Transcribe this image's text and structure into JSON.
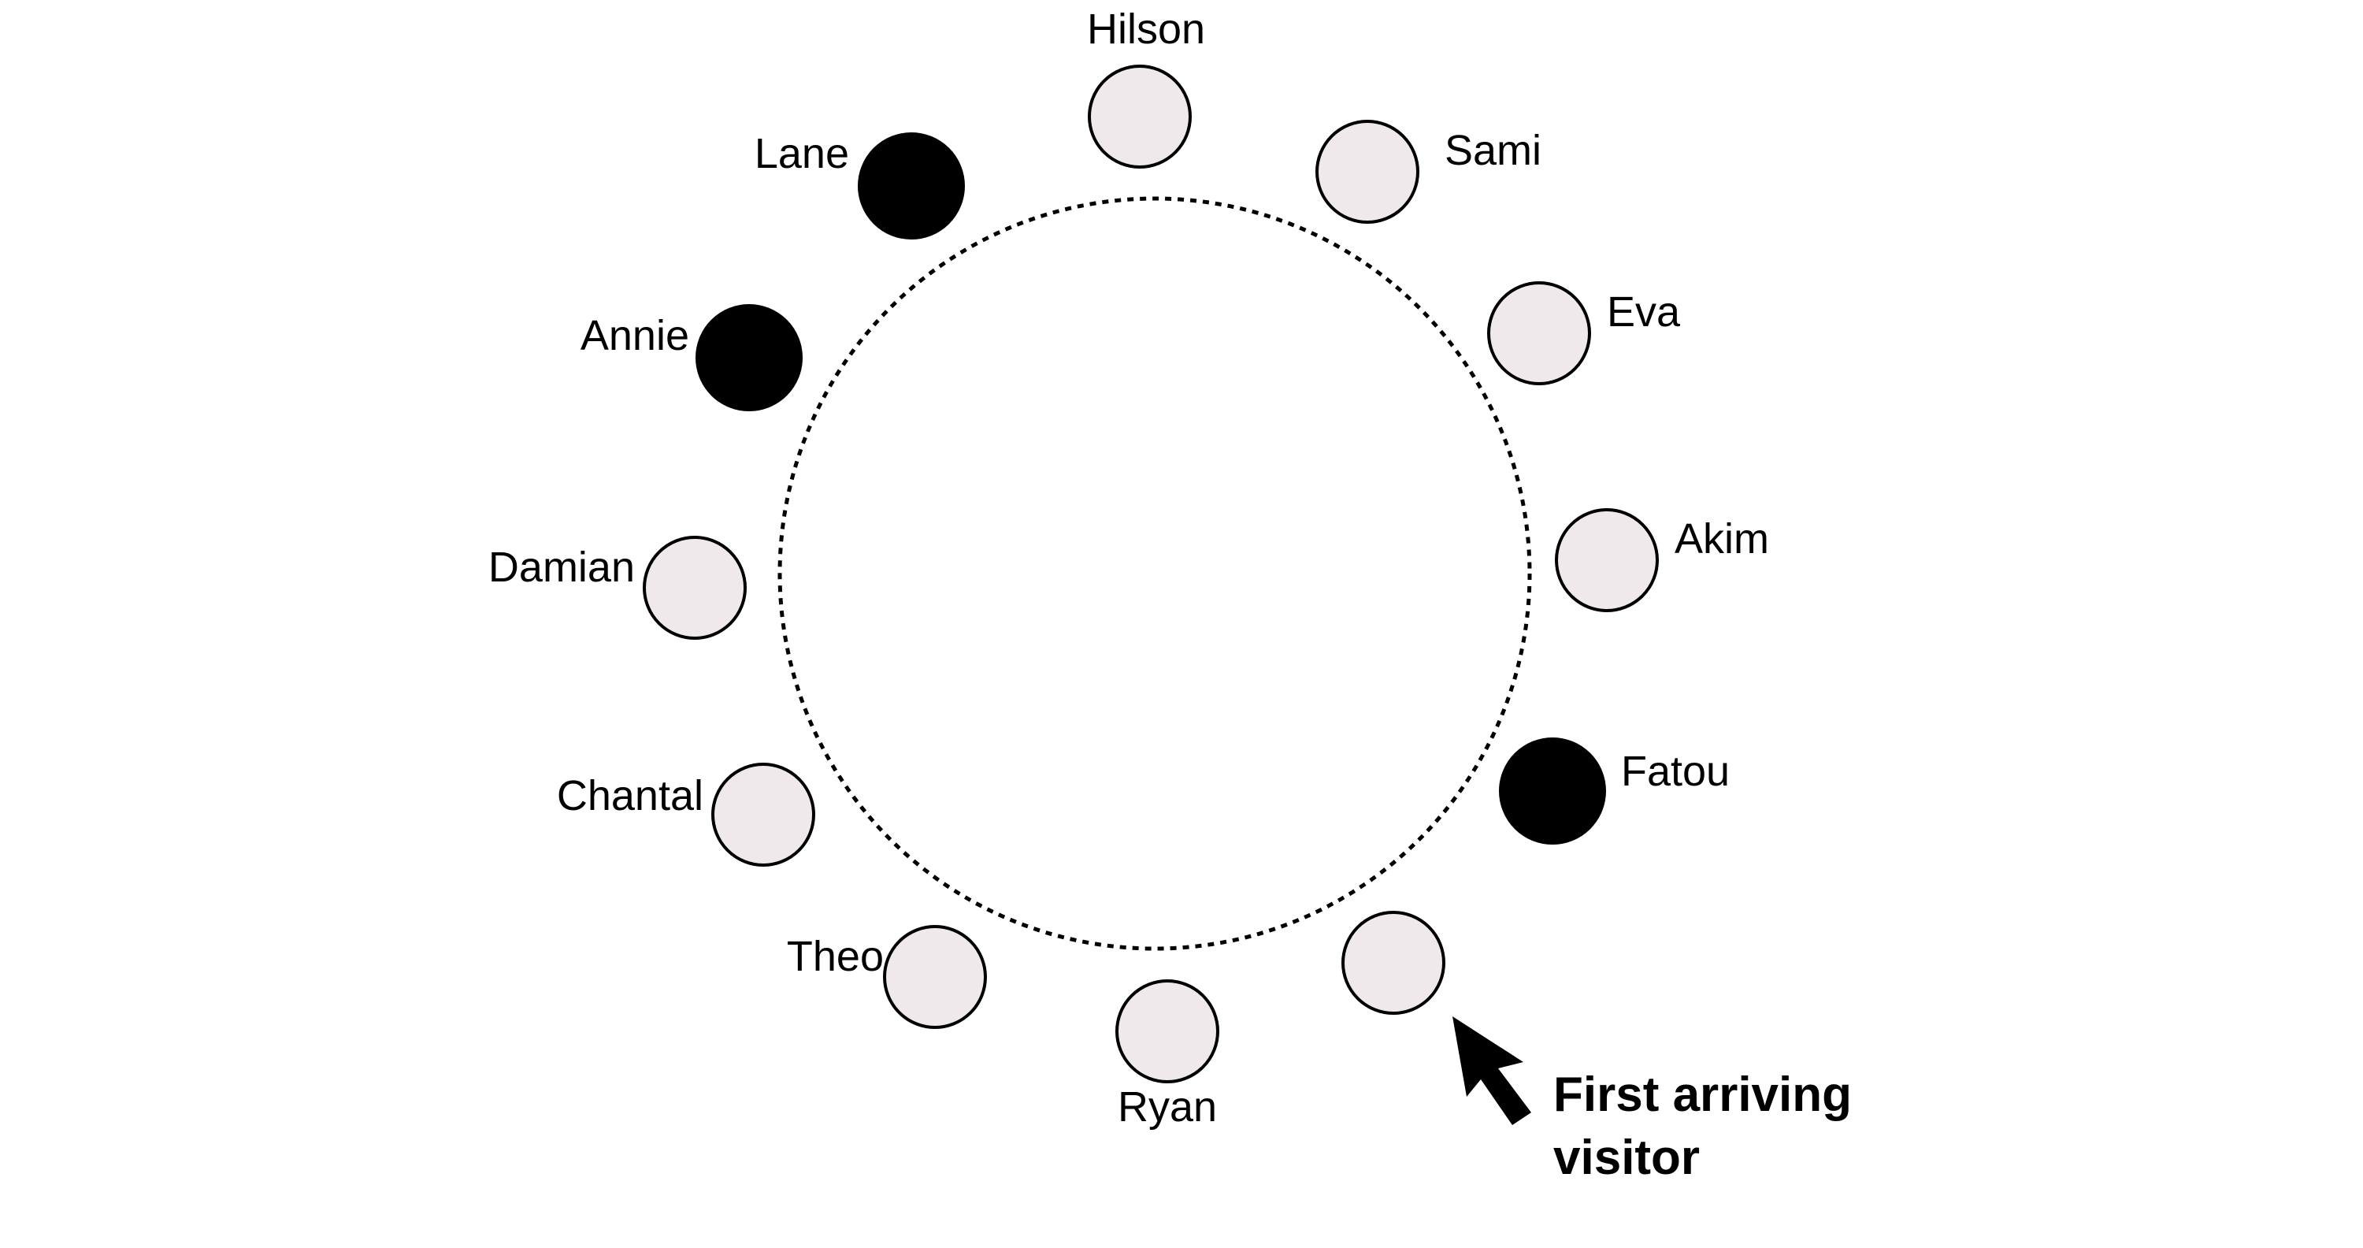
{
  "colors": {
    "occupied": "#000000",
    "empty": "#efe9eb",
    "stroke": "#000000"
  },
  "seats": [
    {
      "label": "Hilson",
      "filled": false
    },
    {
      "label": "Sami",
      "filled": false
    },
    {
      "label": "Eva",
      "filled": false
    },
    {
      "label": "Akim",
      "filled": false
    },
    {
      "label": "Fatou",
      "filled": true
    },
    {
      "label": "",
      "filled": false
    },
    {
      "label": "Ryan",
      "filled": false
    },
    {
      "label": "Theo",
      "filled": false
    },
    {
      "label": "Chantal",
      "filled": false
    },
    {
      "label": "Damian",
      "filled": false
    },
    {
      "label": "Annie",
      "filled": true
    },
    {
      "label": "Lane",
      "filled": true
    }
  ],
  "callout": {
    "line1": "First arriving",
    "line2": "visitor",
    "icon": "cursor-arrow-icon"
  }
}
